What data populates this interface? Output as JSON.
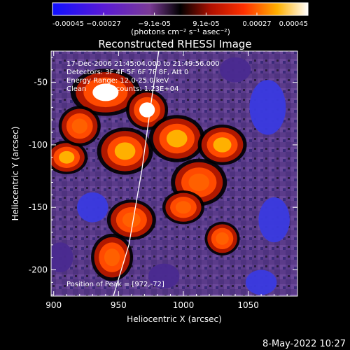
{
  "chart_data": {
    "type": "heatmap",
    "title": "Reconstructed RHESSI Image",
    "xlabel": "Heliocentric X (arcsec)",
    "ylabel": "Heliocentric Y (arcsec)",
    "xlim": [
      898,
      1088
    ],
    "ylim": [
      -221,
      -25
    ],
    "x_ticks": [
      900,
      950,
      1000,
      1050
    ],
    "y_ticks": [
      -50,
      -100,
      -150,
      -200
    ],
    "colorbar": {
      "min": -0.00045,
      "max": 0.00045,
      "tick_values": [
        -0.00045,
        -0.00027,
        -9.1e-05,
        9.1e-05,
        0.00027,
        0.00045
      ],
      "tick_labels": [
        "-0.00045",
        "−0.00027",
        "−9.1e-05",
        "9.1e-05",
        "0.00027",
        "0.00045"
      ],
      "units": "(photons cm⁻² s⁻¹ asec⁻²)",
      "colormap": "blue-purple-black-red-orange-yellow-white"
    },
    "annotations": [
      "17-Dec-2006 21:45:04.000 to 21:49:56.000",
      "Detectors: 3F 4F 5F 6F 7F 8F, Att 0",
      "Energy Range: 12.0-25.0 keV",
      "Clean     Total counts: 1.23E+04"
    ],
    "peak_label": "Position of Peak = [972,-72]",
    "peak": [
      972,
      -72
    ],
    "limb_curve": [
      [
        946,
        -221
      ],
      [
        958,
        -180
      ],
      [
        968,
        -120
      ],
      [
        976,
        -60
      ],
      [
        981,
        -25
      ]
    ],
    "bright_regions": [
      {
        "x": 940,
        "y": -58,
        "rx": 20,
        "ry": 14,
        "value": 0.00045
      },
      {
        "x": 972,
        "y": -72,
        "rx": 12,
        "ry": 12,
        "value": 0.00045
      },
      {
        "x": 910,
        "y": -110,
        "rx": 12,
        "ry": 10,
        "value": 0.00033
      },
      {
        "x": 955,
        "y": -105,
        "rx": 16,
        "ry": 14,
        "value": 0.0003
      },
      {
        "x": 995,
        "y": -95,
        "rx": 16,
        "ry": 14,
        "value": 0.00032
      },
      {
        "x": 1030,
        "y": -100,
        "rx": 14,
        "ry": 12,
        "value": 0.0003
      },
      {
        "x": 1012,
        "y": -130,
        "rx": 16,
        "ry": 14,
        "value": 0.00028
      },
      {
        "x": 960,
        "y": -160,
        "rx": 14,
        "ry": 12,
        "value": 0.00026
      },
      {
        "x": 1000,
        "y": -150,
        "rx": 12,
        "ry": 10,
        "value": 0.00025
      },
      {
        "x": 945,
        "y": -190,
        "rx": 12,
        "ry": 14,
        "value": 0.00027
      },
      {
        "x": 1030,
        "y": -175,
        "rx": 10,
        "ry": 10,
        "value": 0.00025
      },
      {
        "x": 920,
        "y": -85,
        "rx": 12,
        "ry": 12,
        "value": 0.00026
      }
    ],
    "dim_regions": [
      {
        "x": 930,
        "y": -150,
        "rx": 12,
        "ry": 12,
        "value": -0.0003
      },
      {
        "x": 1065,
        "y": -70,
        "rx": 14,
        "ry": 22,
        "value": -0.00032
      },
      {
        "x": 1070,
        "y": -160,
        "rx": 12,
        "ry": 18,
        "value": -0.0003
      },
      {
        "x": 1060,
        "y": -210,
        "rx": 12,
        "ry": 10,
        "value": -0.00028
      },
      {
        "x": 1040,
        "y": -40,
        "rx": 12,
        "ry": 10,
        "value": -0.00025
      },
      {
        "x": 905,
        "y": -190,
        "rx": 10,
        "ry": 12,
        "value": -0.00025
      },
      {
        "x": 985,
        "y": -205,
        "rx": 12,
        "ry": 10,
        "value": -0.00022
      }
    ]
  },
  "footer": {
    "timestamp": "8-May-2022 10:27"
  }
}
